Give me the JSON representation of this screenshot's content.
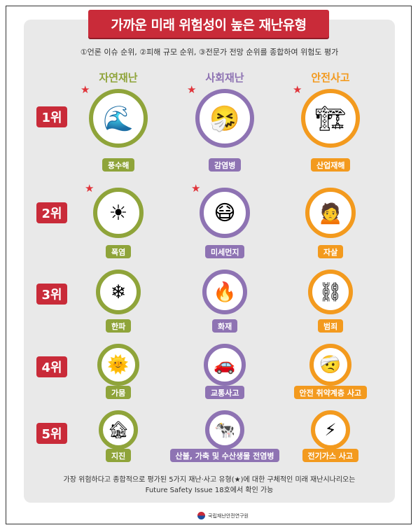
{
  "title": "가까운 미래 위험성이 높은 재난유형",
  "subtitle": "①언론 이슈 순위, ②피해 규모 순위, ③전문가 전망 순위를 종합하여 위험도 평가",
  "columns": [
    "자연재난",
    "사회재난",
    "안전사고"
  ],
  "colors": {
    "natural": "#8fa43a",
    "social": "#8e73b3",
    "safety": "#f39a1e",
    "rank": "#c92b39"
  },
  "ranks": [
    {
      "rank": "1위",
      "items": [
        {
          "label": "풍수해",
          "icon": "tsunami-wave-icon",
          "star": true
        },
        {
          "label": "감염병",
          "icon": "infected-people-icon",
          "star": true
        },
        {
          "label": "산업재해",
          "icon": "forklift-accident-icon",
          "star": true
        }
      ]
    },
    {
      "rank": "2위",
      "items": [
        {
          "label": "폭염",
          "icon": "sun-thermometer-icon",
          "star": true
        },
        {
          "label": "미세먼지",
          "icon": "fine-dust-mask-icon",
          "star": true
        },
        {
          "label": "자살",
          "icon": "sad-person-icon",
          "star": false
        }
      ]
    },
    {
      "rank": "3위",
      "items": [
        {
          "label": "한파",
          "icon": "frozen-house-icon",
          "star": false
        },
        {
          "label": "화재",
          "icon": "burning-house-icon",
          "star": false
        },
        {
          "label": "범죄",
          "icon": "handcuffs-icon",
          "star": false
        }
      ]
    },
    {
      "rank": "4위",
      "items": [
        {
          "label": "가뭄",
          "icon": "dry-land-sun-icon",
          "star": false
        },
        {
          "label": "교통사고",
          "icon": "car-crash-icon",
          "star": false
        },
        {
          "label": "안전 취약계층 사고",
          "icon": "falling-person-icon",
          "star": false
        }
      ]
    },
    {
      "rank": "5위",
      "items": [
        {
          "label": "지진",
          "icon": "earthquake-icon",
          "star": false
        },
        {
          "label": "산불, 가축 및 수산생물 전염병",
          "icon": "wildfire-livestock-icon",
          "star": false
        },
        {
          "label": "전기가스 사고",
          "icon": "electric-gas-icon",
          "star": false
        }
      ]
    }
  ],
  "footer": {
    "line1": "가장 위험하다고 종합적으로 평가된 5가지 재난·사고 유형(★)에 대한 구체적인 미래 재난시나리오는",
    "line2": "Future Safety Issue 18호에서 확인 가능"
  },
  "logo_text": "국립재난안전연구원"
}
